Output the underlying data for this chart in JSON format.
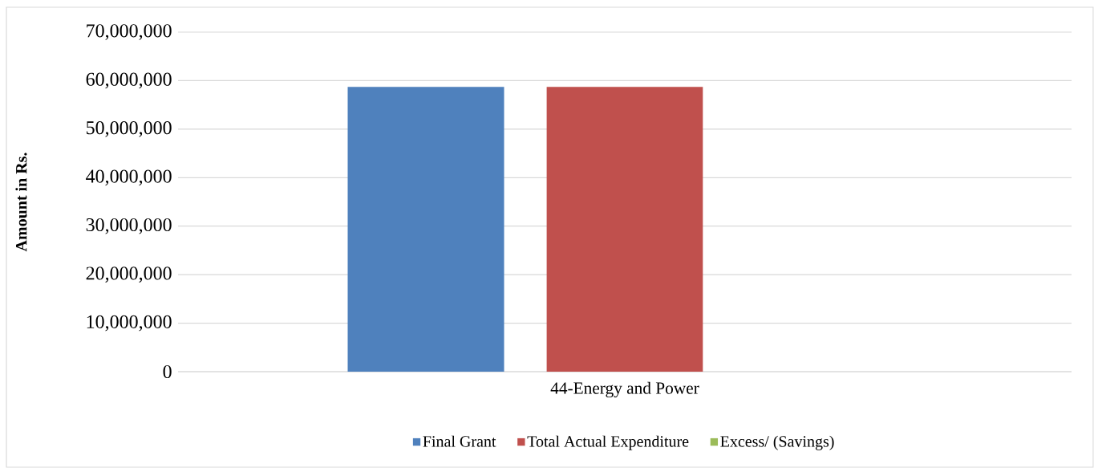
{
  "chart_data": {
    "type": "bar",
    "categories": [
      "44-Energy and Power"
    ],
    "ylabel": "Amount in Rs.",
    "series": [
      {
        "name": "Final Grant",
        "color": "#4f81bd",
        "values": [
          58700000
        ]
      },
      {
        "name": "Total Actual Expenditure",
        "color": "#c0504d",
        "values": [
          58700000
        ]
      },
      {
        "name": "Excess/ (Savings)",
        "color": "#9bbb59",
        "values": [
          0
        ]
      }
    ],
    "ylim": [
      0,
      70000000
    ],
    "yticks": [
      {
        "value": 0,
        "label": "0"
      },
      {
        "value": 10000000,
        "label": "10,000,000"
      },
      {
        "value": 20000000,
        "label": "20,000,000"
      },
      {
        "value": 30000000,
        "label": "30,000,000"
      },
      {
        "value": 40000000,
        "label": "40,000,000"
      },
      {
        "value": 50000000,
        "label": "50,000,000"
      },
      {
        "value": 60000000,
        "label": "60,000,000"
      },
      {
        "value": 70000000,
        "label": "70,000,000"
      }
    ],
    "grid": "y",
    "legend": "bottom"
  }
}
